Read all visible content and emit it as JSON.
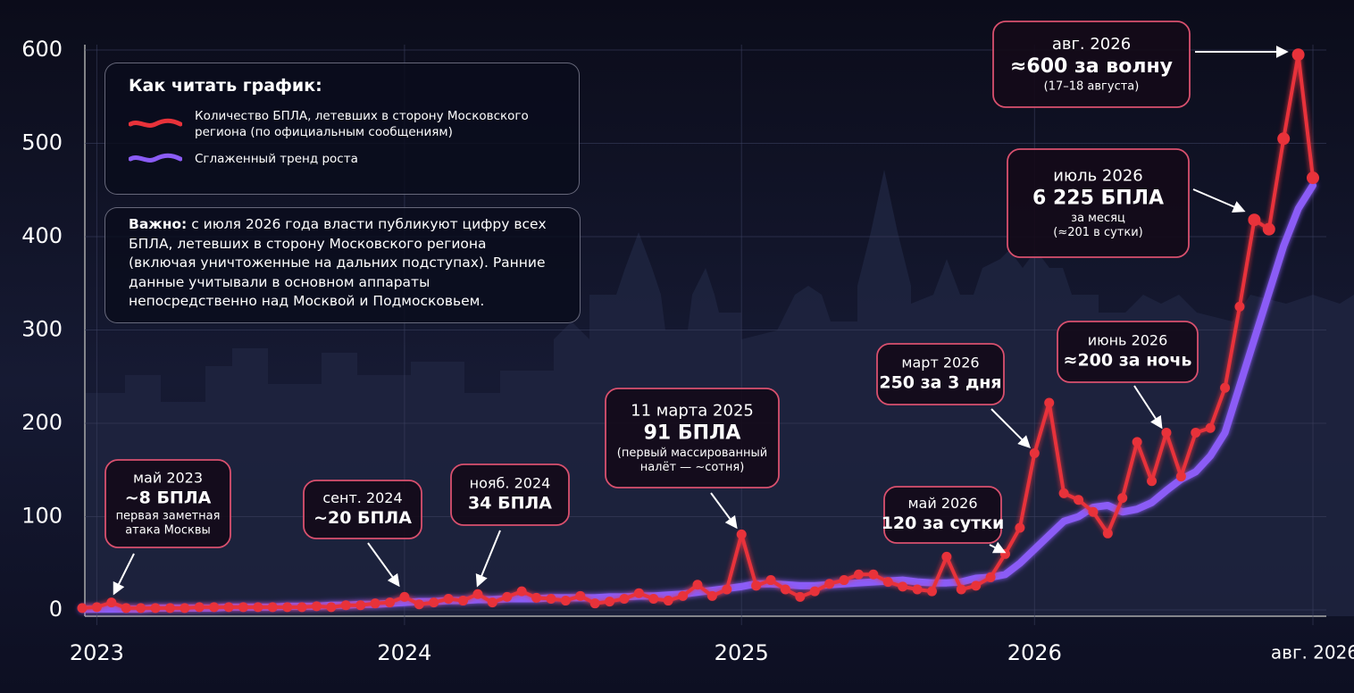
{
  "chart_data": {
    "type": "line",
    "legend_title": "Как читать график:",
    "note": {
      "bold": "Важно:",
      "text": "с июля 2026 года власти публикуют цифру всех БПЛА, летевших в сторону Московского региона (включая уничтоженные на дальних подступах). Ранние данные учитывали в основном аппараты непосредственно над Москвой и Подмосковьем."
    },
    "categories": [
      null,
      "2023",
      null,
      null,
      null,
      null,
      null,
      null,
      null,
      null,
      null,
      null,
      null,
      null,
      null,
      null,
      null,
      null,
      null,
      null,
      null,
      null,
      "2024",
      null,
      null,
      null,
      null,
      null,
      null,
      null,
      null,
      null,
      null,
      null,
      null,
      null,
      null,
      null,
      null,
      null,
      null,
      null,
      null,
      null,
      null,
      "2025",
      null,
      null,
      null,
      null,
      null,
      null,
      null,
      null,
      null,
      null,
      null,
      null,
      null,
      null,
      null,
      null,
      null,
      null,
      null,
      "2026",
      null,
      null,
      null,
      null,
      null,
      null,
      null,
      null,
      null,
      null,
      null,
      null,
      null,
      null,
      null,
      null,
      null,
      null,
      "авг. 2026"
    ],
    "series": [
      {
        "name": "Количество БПЛА, летевших в сторону Московского региона (по официальным сообщениям)",
        "color": "#e8323a",
        "values": [
          2,
          3,
          8,
          2,
          2,
          2,
          2,
          2,
          3,
          3,
          3,
          3,
          3,
          3,
          3,
          3,
          4,
          3,
          5,
          5,
          7,
          8,
          14,
          6,
          8,
          12,
          10,
          17,
          8,
          14,
          20,
          13,
          12,
          10,
          15,
          7,
          9,
          12,
          18,
          12,
          10,
          15,
          27,
          15,
          22,
          81,
          26,
          32,
          22,
          14,
          20,
          28,
          32,
          38,
          38,
          30,
          25,
          22,
          20,
          57,
          22,
          26,
          35,
          60,
          88,
          168,
          222,
          125,
          118,
          105,
          82,
          120,
          180,
          138,
          190,
          143,
          190,
          195,
          238,
          325,
          418,
          408,
          505,
          595,
          463
        ]
      },
      {
        "name": "Сглаженный тренд роста",
        "color": "#8b5cf6",
        "values": [
          1,
          1,
          1,
          1,
          1,
          2,
          2,
          2,
          2,
          2,
          3,
          3,
          3,
          3,
          4,
          4,
          4,
          5,
          5,
          6,
          6,
          7,
          8,
          9,
          9,
          10,
          10,
          11,
          11,
          12,
          12,
          12,
          13,
          13,
          13,
          13,
          14,
          14,
          15,
          15,
          16,
          17,
          19,
          21,
          23,
          25,
          28,
          28,
          27,
          26,
          26,
          27,
          28,
          29,
          30,
          31,
          32,
          30,
          29,
          29,
          30,
          34,
          35,
          38,
          50,
          65,
          80,
          95,
          100,
          110,
          112,
          105,
          108,
          115,
          128,
          140,
          148,
          165,
          190,
          240,
          290,
          340,
          390,
          430,
          455
        ]
      }
    ],
    "ylim": [
      0,
      600
    ],
    "yticks": [
      0,
      100,
      200,
      300,
      400,
      500,
      600
    ],
    "grid": true,
    "annotations": [
      {
        "lines": [
          "май 2023",
          "~8 БПЛА",
          "первая заметная",
          "атака Москвы"
        ]
      },
      {
        "lines": [
          "сент. 2024",
          "~20 БПЛА"
        ]
      },
      {
        "lines": [
          "нояб. 2024",
          "34 БПЛА"
        ]
      },
      {
        "lines": [
          "11 марта 2025",
          "91 БПЛА",
          "(первый массированный",
          "налёт — ~сотня)"
        ]
      },
      {
        "lines": [
          "март 2026",
          "250 за 3 дня"
        ]
      },
      {
        "lines": [
          "май 2026",
          "120 за сутки"
        ]
      },
      {
        "lines": [
          "июнь 2026",
          "≈200 за ночь"
        ]
      },
      {
        "lines": [
          "июль 2026",
          "6 225 БПЛА",
          "за месяц",
          "(≈201 в сутки)"
        ]
      },
      {
        "lines": [
          "авг. 2026",
          "≈600 за волну",
          "(17–18 августа)"
        ]
      }
    ]
  }
}
